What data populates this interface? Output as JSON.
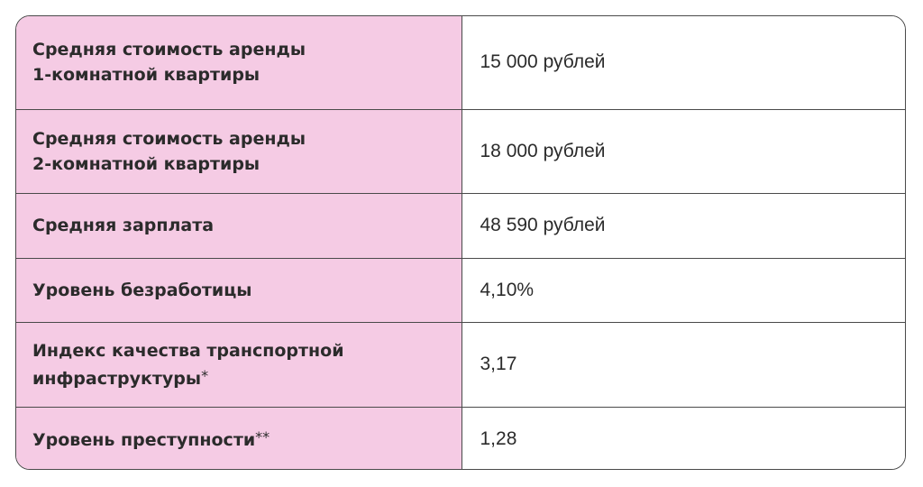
{
  "table": {
    "rows": [
      {
        "label_line1": "Средняя стоимость аренды",
        "label_line2": "1-комнатной квартиры",
        "value": "15 000 рублей"
      },
      {
        "label_line1": "Средняя стоимость аренды",
        "label_line2": "2-комнатной квартиры",
        "value": "18 000 рублей"
      },
      {
        "label": "Средняя зарплата",
        "value": "48 590 рублей"
      },
      {
        "label": "Уровень безработицы",
        "value": "4,10%"
      },
      {
        "label_line1": "Индекс качества транспортной",
        "label_line2": "инфраструктуры",
        "mark": "*",
        "value": "3,17"
      },
      {
        "label": "Уровень преступности",
        "mark": "**",
        "value": "1,28"
      }
    ]
  },
  "colors": {
    "label_background": "#f5cbe4",
    "border": "#4a4a4a",
    "text": "#2b2b2b"
  }
}
